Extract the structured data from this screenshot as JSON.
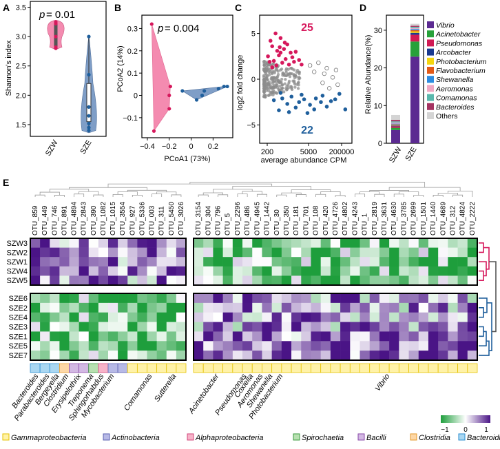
{
  "panels": {
    "a": "A",
    "b": "B",
    "c": "C",
    "d": "D",
    "e": "E"
  },
  "colors": {
    "szw": "#e8547f",
    "sze": "#2b6aa6",
    "sig_up": "#d6185c",
    "sig_down": "#1f5f9c",
    "up_fill": "#f48bb0",
    "down_fill": "#7f9ec7",
    "heat_low": "#1e9e3c",
    "heat_mid": "#ffffff",
    "heat_high": "#4a1486"
  },
  "chart_data": [
    {
      "id": "A",
      "type": "violin",
      "ylabel": "Shannon's index",
      "ylim": [
        1.3,
        3.6
      ],
      "yticks": [
        1.5,
        2.0,
        2.5,
        3.0,
        3.5
      ],
      "ytick_labels": [
        "1.5",
        "2.0",
        "2.5",
        "3.0",
        "3.5"
      ],
      "categories": [
        "SZW",
        "SZE"
      ],
      "annotation_prefix": "p",
      "annotation_value": " = 0.01",
      "series": [
        {
          "name": "SZW",
          "points": [
            3.25,
            3.22,
            3.0,
            2.82,
            2.8
          ]
        },
        {
          "name": "SZE",
          "points": [
            3.0,
            2.35,
            1.8,
            1.65,
            1.52,
            1.45,
            1.4
          ]
        }
      ]
    },
    {
      "id": "B",
      "type": "scatter",
      "xlabel": "PCoA1 (73%)",
      "ylabel": "PCoA2 (14%)",
      "xlim": [
        -0.45,
        0.38
      ],
      "ylim": [
        -0.19,
        0.36
      ],
      "xticks": [
        -0.4,
        -0.2,
        0.0,
        0.2
      ],
      "xtick_labels": [
        "−0.4",
        "−0.2",
        "0",
        "0.2"
      ],
      "yticks": [
        -0.1,
        0.0,
        0.1,
        0.2,
        0.3
      ],
      "ytick_labels": [
        "−0.1",
        "0",
        "0.1",
        "0.2",
        "0.3"
      ],
      "annotation_prefix": "p",
      "annotation_value": " = 0.004",
      "series": [
        {
          "name": "SZW",
          "points": [
            [
              -0.36,
              0.32
            ],
            [
              -0.34,
              -0.16
            ],
            [
              -0.2,
              0.0
            ],
            [
              -0.19,
              0.04
            ],
            [
              -0.2,
              -0.06
            ]
          ]
        },
        {
          "name": "SZE",
          "points": [
            [
              -0.08,
              0.02
            ],
            [
              0.05,
              -0.02
            ],
            [
              0.1,
              0.0
            ],
            [
              0.12,
              0.02
            ],
            [
              0.25,
              0.03
            ],
            [
              0.3,
              0.04
            ],
            [
              0.33,
              0.04
            ]
          ]
        }
      ]
    },
    {
      "id": "C",
      "type": "scatter",
      "xlabel": "average abundance CPM",
      "ylabel": "log2 fold change",
      "xticks": [
        "200",
        "5000",
        "200000"
      ],
      "yticks": [
        5,
        0,
        -5
      ],
      "ytick_labels": [
        "5",
        "0",
        "−5"
      ],
      "ylim": [
        -7,
        7
      ],
      "up_count": "25",
      "down_count": "22",
      "up": [
        [
          0.05,
          2.5
        ],
        [
          0.08,
          4.2
        ],
        [
          0.1,
          3.6
        ],
        [
          0.12,
          2.0
        ],
        [
          0.14,
          5.0
        ],
        [
          0.16,
          3.1
        ],
        [
          0.18,
          2.6
        ],
        [
          0.2,
          4.5
        ],
        [
          0.22,
          1.8
        ],
        [
          0.24,
          3.3
        ],
        [
          0.26,
          2.2
        ],
        [
          0.28,
          3.8
        ],
        [
          0.3,
          1.6
        ],
        [
          0.32,
          2.9
        ],
        [
          0.34,
          2.4
        ],
        [
          0.36,
          1.9
        ],
        [
          0.38,
          3.0
        ],
        [
          0.1,
          1.3
        ],
        [
          0.15,
          1.5
        ],
        [
          0.2,
          2.9
        ],
        [
          0.25,
          4.0
        ],
        [
          0.42,
          2.1
        ],
        [
          0.07,
          1.9
        ],
        [
          0.19,
          3.5
        ],
        [
          0.45,
          1.6
        ]
      ],
      "down": [
        [
          0.12,
          -2.3
        ],
        [
          0.18,
          -3.4
        ],
        [
          0.22,
          -2.1
        ],
        [
          0.28,
          -2.7
        ],
        [
          0.33,
          -1.9
        ],
        [
          0.38,
          -3.1
        ],
        [
          0.42,
          -2.5
        ],
        [
          0.48,
          -2.2
        ],
        [
          0.52,
          -3.7
        ],
        [
          0.55,
          -2.8
        ],
        [
          0.6,
          -3.3
        ],
        [
          0.62,
          -2.1
        ],
        [
          0.68,
          -2.5
        ],
        [
          0.7,
          -1.8
        ],
        [
          0.75,
          -3.0
        ],
        [
          0.8,
          -2.4
        ],
        [
          0.85,
          -2.2
        ],
        [
          0.9,
          -1.6
        ],
        [
          0.97,
          -3.3
        ],
        [
          0.3,
          -3.6
        ],
        [
          0.45,
          -1.7
        ],
        [
          0.2,
          -1.5
        ]
      ],
      "ns": [
        [
          0.55,
          1.5
        ],
        [
          0.6,
          0.8
        ],
        [
          0.65,
          1.8
        ],
        [
          0.7,
          -0.4
        ],
        [
          0.72,
          0.6
        ],
        [
          0.75,
          1.2
        ],
        [
          0.78,
          -1.0
        ],
        [
          0.82,
          0.2
        ],
        [
          0.86,
          1.0
        ],
        [
          0.88,
          -0.6
        ]
      ]
    },
    {
      "id": "D",
      "type": "stacked_bar",
      "ylabel": "Relative Abundance(%)",
      "ylim": [
        0,
        34
      ],
      "yticks": [
        0,
        10,
        20,
        30
      ],
      "ytick_labels": [
        "0",
        "10",
        "20",
        "30"
      ],
      "categories": [
        "SZW",
        "SZE"
      ],
      "series": [
        {
          "name": "Vibrio",
          "color": "#5b2a91",
          "values": [
            3.5,
            23
          ]
        },
        {
          "name": "Acinetobacter",
          "color": "#27a13a",
          "values": [
            0.6,
            4
          ]
        },
        {
          "name": "Pseudomonas",
          "color": "#d11a54",
          "values": [
            0.4,
            1.8
          ]
        },
        {
          "name": "Arcobacter",
          "color": "#1a3a8f",
          "values": [
            0.2,
            0.5
          ]
        },
        {
          "name": "Photobacterium",
          "color": "#f5d60e",
          "values": [
            0.1,
            0.4
          ]
        },
        {
          "name": "Flavobacterium",
          "color": "#e35a17",
          "values": [
            0.2,
            0.3
          ]
        },
        {
          "name": "Shewanella",
          "color": "#2d8ce0",
          "values": [
            0.2,
            0.3
          ]
        },
        {
          "name": "Aeromonas",
          "color": "#f0a8c4",
          "values": [
            0.3,
            0.3
          ]
        },
        {
          "name": "Comamonas",
          "color": "#5ab8ad",
          "values": [
            0.3,
            0.3
          ]
        },
        {
          "name": "Bacteroides",
          "color": "#a43361",
          "values": [
            0.4,
            0.3
          ]
        },
        {
          "name": "Others",
          "color": "#d4d4d4",
          "values": [
            1.3,
            0.5
          ]
        }
      ]
    },
    {
      "id": "E",
      "type": "heatmap",
      "scale_ticks": [
        "−1",
        "0",
        "1"
      ],
      "columns_left": [
        "OTU_859",
        "OTU_449",
        "OTU_746",
        "OTU_891",
        "OTU_4894",
        "OTU_2843",
        "OTU_390",
        "OTU_1082",
        "OTU_1015",
        "OTU_3554",
        "OTU_927",
        "OTU_5336",
        "OTU_003",
        "OTU_311",
        "OTU_5450",
        "OTU_3026"
      ],
      "columns_right": [
        "OTU_3154",
        "OTU_304",
        "OTU_796",
        "OTU_5",
        "OTU_2296",
        "OTU_486",
        "OTU_4945",
        "OTU_1442",
        "OTU_30",
        "OTU_350",
        "OTU_181",
        "OTU_701",
        "OTU_108",
        "OTU_420",
        "OTU_4726",
        "OTU_4802",
        "OTU_4243",
        "OTU_1",
        "OTU_2819",
        "OTU_3631",
        "OTU_4630",
        "OTU_3785",
        "OTU_2699",
        "OTU_1501",
        "OTU_1440",
        "OTU_4689",
        "OTU_312",
        "OTU_4824",
        "OTU_2222"
      ],
      "rows_top": [
        "SZW3",
        "SZW2",
        "SZW1",
        "SZW4",
        "SZW5"
      ],
      "rows_bottom": [
        "SZE6",
        "SZE2",
        "SZE4",
        "SZE3",
        "SZE1",
        "SZE5",
        "SZE7"
      ],
      "genus_labels": [
        "Bacteroides",
        "Parabacteroides",
        "Bergeyella",
        "Clostridium",
        "Erysipelothrix",
        "Treponema",
        "Sphingorhabdus",
        "Mycobacterium",
        "Comamonas",
        "Sutterella",
        "Acinetobacter",
        "Pseudomonas",
        "Coxiella",
        "Aeromonas",
        "Shewanella",
        "Photobacterium",
        "Vibrio"
      ],
      "class_legend": [
        {
          "name": "Gammaproteobacteria",
          "color": "#fff2a8",
          "border": "#e5c200"
        },
        {
          "name": "Actinobacteria",
          "color": "#b7b9e6",
          "border": "#5a5fb0"
        },
        {
          "name": "Alphaproteobacteria",
          "color": "#f7b2c8",
          "border": "#d0447a"
        },
        {
          "name": "Spirochaetia",
          "color": "#b7e0b0",
          "border": "#3a9a3e"
        },
        {
          "name": "Bacilli",
          "color": "#d3b8e3",
          "border": "#8a4aaa"
        },
        {
          "name": "Clostridia",
          "color": "#fdd7a6",
          "border": "#e59a2a"
        },
        {
          "name": "Bacteroidia",
          "color": "#a9d7f2",
          "border": "#2a8ccf"
        }
      ]
    }
  ]
}
